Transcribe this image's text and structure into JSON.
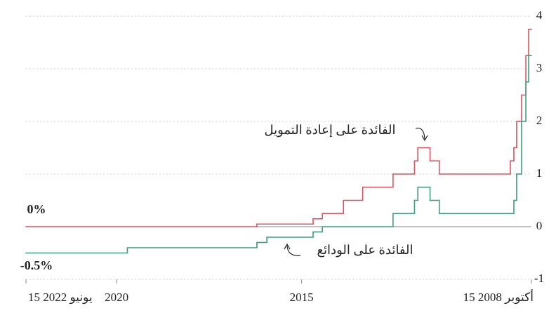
{
  "chart_data": {
    "type": "step",
    "xlim": [
      2022.45,
      2008.79
    ],
    "xticks": [
      {
        "value": 2022.45,
        "label": "15 يونيو 2022"
      },
      2020,
      2015,
      {
        "value": 2008.79,
        "label": "15 أكتوبر 2008"
      }
    ],
    "ylim": [
      -1,
      4
    ],
    "yticks": [
      -1,
      0,
      1,
      2,
      3,
      4
    ],
    "grid": true,
    "series": [
      {
        "name": "الفائدة على إعادة التمويل",
        "color": "#e0505a",
        "end_label": "0%",
        "x": [
          2008.79,
          2008.865,
          2008.94,
          2009.055,
          2009.19,
          2009.265,
          2009.36,
          2011.28,
          2011.53,
          2011.86,
          2011.95,
          2012.53,
          2013.35,
          2013.87,
          2014.44,
          2014.69,
          2016.21
        ],
        "values": [
          3.75,
          3.25,
          2.5,
          2.0,
          1.5,
          1.25,
          1.0,
          1.25,
          1.5,
          1.25,
          1.0,
          0.75,
          0.5,
          0.25,
          0.15,
          0.05,
          0
        ]
      },
      {
        "name": "الفائدة على الودائع",
        "color": "#3a9e7a",
        "end_label": "-0.5%",
        "x": [
          2008.79,
          2008.865,
          2008.94,
          2009.055,
          2009.19,
          2009.265,
          2011.28,
          2011.53,
          2011.86,
          2011.95,
          2012.53,
          2014.44,
          2014.69,
          2015.94,
          2016.21,
          2019.71
        ],
        "values": [
          3.25,
          2.75,
          2.0,
          1.0,
          0.5,
          0.25,
          0.5,
          0.75,
          0.5,
          0.25,
          0,
          -0.1,
          -0.2,
          -0.3,
          -0.4,
          -0.5
        ]
      }
    ]
  }
}
